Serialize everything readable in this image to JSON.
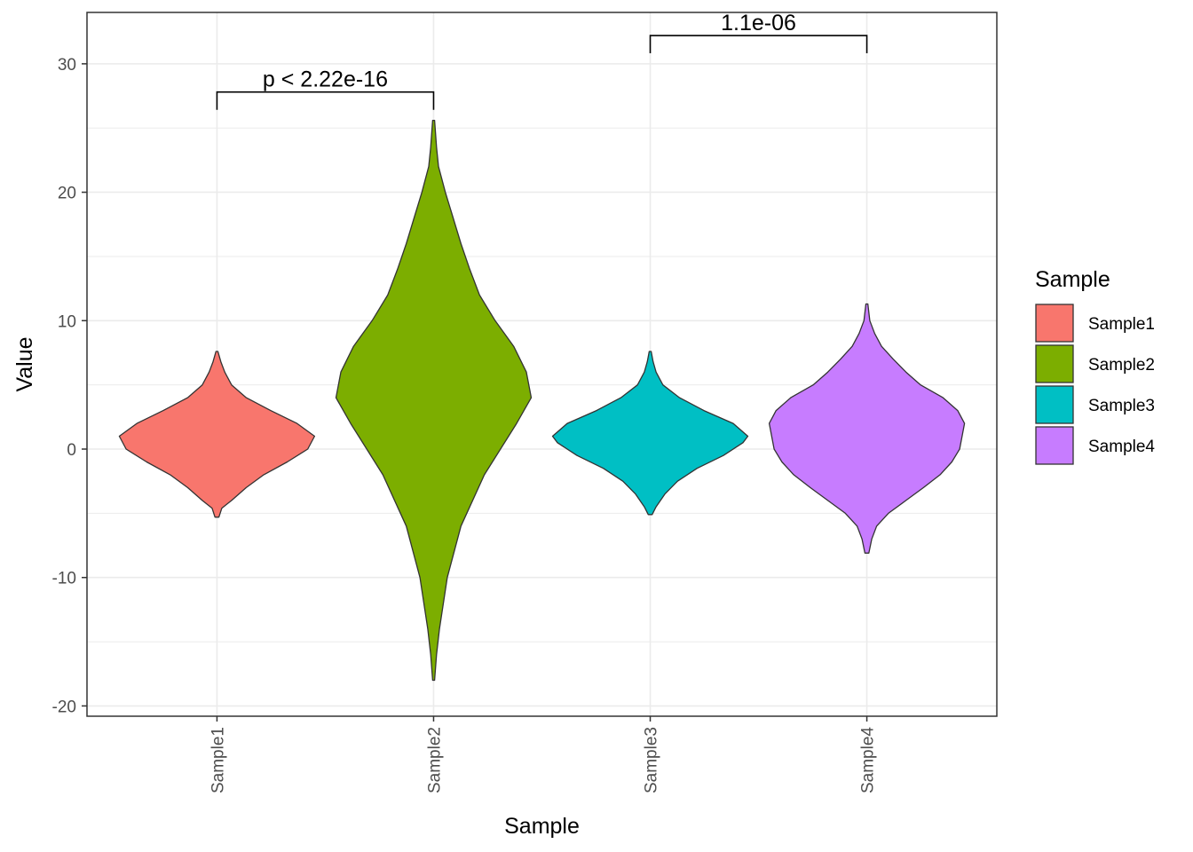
{
  "chart_data": {
    "type": "violin",
    "title": "",
    "xlabel": "Sample",
    "ylabel": "Value",
    "ylim": [
      -20.8,
      34
    ],
    "yticks": [
      -20,
      -10,
      0,
      10,
      20,
      30
    ],
    "ytick_labels": [
      "-20",
      "-10",
      "0",
      "10",
      "20",
      "30"
    ],
    "grid": true,
    "categories": [
      "Sample1",
      "Sample2",
      "Sample3",
      "Sample4"
    ],
    "series": [
      {
        "name": "Sample1",
        "color": "#F8766D",
        "min": -5.3,
        "max": 7.6,
        "profile": [
          [
            -5.3,
            0.02
          ],
          [
            -4.6,
            0.05
          ],
          [
            -4.0,
            0.15
          ],
          [
            -3.0,
            0.3
          ],
          [
            -2.0,
            0.48
          ],
          [
            -1.0,
            0.72
          ],
          [
            0.0,
            0.93
          ],
          [
            1.0,
            1.0
          ],
          [
            2.0,
            0.82
          ],
          [
            3.0,
            0.55
          ],
          [
            4.0,
            0.3
          ],
          [
            5.0,
            0.15
          ],
          [
            6.0,
            0.08
          ],
          [
            6.8,
            0.04
          ],
          [
            7.6,
            0.01
          ]
        ]
      },
      {
        "name": "Sample2",
        "color": "#7CAE00",
        "min": -18.0,
        "max": 25.6,
        "profile": [
          [
            -18.0,
            0.01
          ],
          [
            -16.0,
            0.03
          ],
          [
            -14.0,
            0.06
          ],
          [
            -10.0,
            0.14
          ],
          [
            -6.0,
            0.28
          ],
          [
            -2.0,
            0.52
          ],
          [
            2.0,
            0.85
          ],
          [
            4.0,
            1.0
          ],
          [
            6.0,
            0.95
          ],
          [
            8.0,
            0.82
          ],
          [
            10.0,
            0.63
          ],
          [
            12.0,
            0.47
          ],
          [
            14.0,
            0.37
          ],
          [
            16.0,
            0.28
          ],
          [
            18.0,
            0.2
          ],
          [
            20.0,
            0.12
          ],
          [
            22.0,
            0.05
          ],
          [
            23.5,
            0.03
          ],
          [
            25.6,
            0.01
          ]
        ]
      },
      {
        "name": "Sample3",
        "color": "#00BFC4",
        "min": -5.1,
        "max": 7.6,
        "profile": [
          [
            -5.1,
            0.02
          ],
          [
            -4.5,
            0.06
          ],
          [
            -3.5,
            0.15
          ],
          [
            -2.5,
            0.28
          ],
          [
            -1.5,
            0.48
          ],
          [
            -0.5,
            0.75
          ],
          [
            0.5,
            0.95
          ],
          [
            1.0,
            1.0
          ],
          [
            2.0,
            0.85
          ],
          [
            3.0,
            0.55
          ],
          [
            4.0,
            0.3
          ],
          [
            5.0,
            0.13
          ],
          [
            6.0,
            0.06
          ],
          [
            6.8,
            0.03
          ],
          [
            7.6,
            0.01
          ]
        ]
      },
      {
        "name": "Sample4",
        "color": "#C77CFF",
        "min": -8.1,
        "max": 11.3,
        "profile": [
          [
            -8.1,
            0.02
          ],
          [
            -7.0,
            0.05
          ],
          [
            -6.0,
            0.1
          ],
          [
            -5.0,
            0.22
          ],
          [
            -4.0,
            0.4
          ],
          [
            -3.0,
            0.58
          ],
          [
            -2.0,
            0.75
          ],
          [
            -1.0,
            0.87
          ],
          [
            0.0,
            0.95
          ],
          [
            2.0,
            1.0
          ],
          [
            3.0,
            0.93
          ],
          [
            4.0,
            0.78
          ],
          [
            5.0,
            0.55
          ],
          [
            6.0,
            0.4
          ],
          [
            7.0,
            0.27
          ],
          [
            8.0,
            0.15
          ],
          [
            9.0,
            0.08
          ],
          [
            10.0,
            0.03
          ],
          [
            11.3,
            0.01
          ]
        ]
      }
    ],
    "annotations": [
      {
        "from": "Sample1",
        "to": "Sample2",
        "y": 27.8,
        "label": "p < 2.22e-16"
      },
      {
        "from": "Sample3",
        "to": "Sample4",
        "y": 32.2,
        "label": "1.1e-06"
      }
    ],
    "legend": {
      "title": "Sample",
      "position": "right",
      "entries": [
        {
          "label": "Sample1",
          "color": "#F8766D"
        },
        {
          "label": "Sample2",
          "color": "#7CAE00"
        },
        {
          "label": "Sample3",
          "color": "#00BFC4"
        },
        {
          "label": "Sample4",
          "color": "#C77CFF"
        }
      ]
    }
  }
}
